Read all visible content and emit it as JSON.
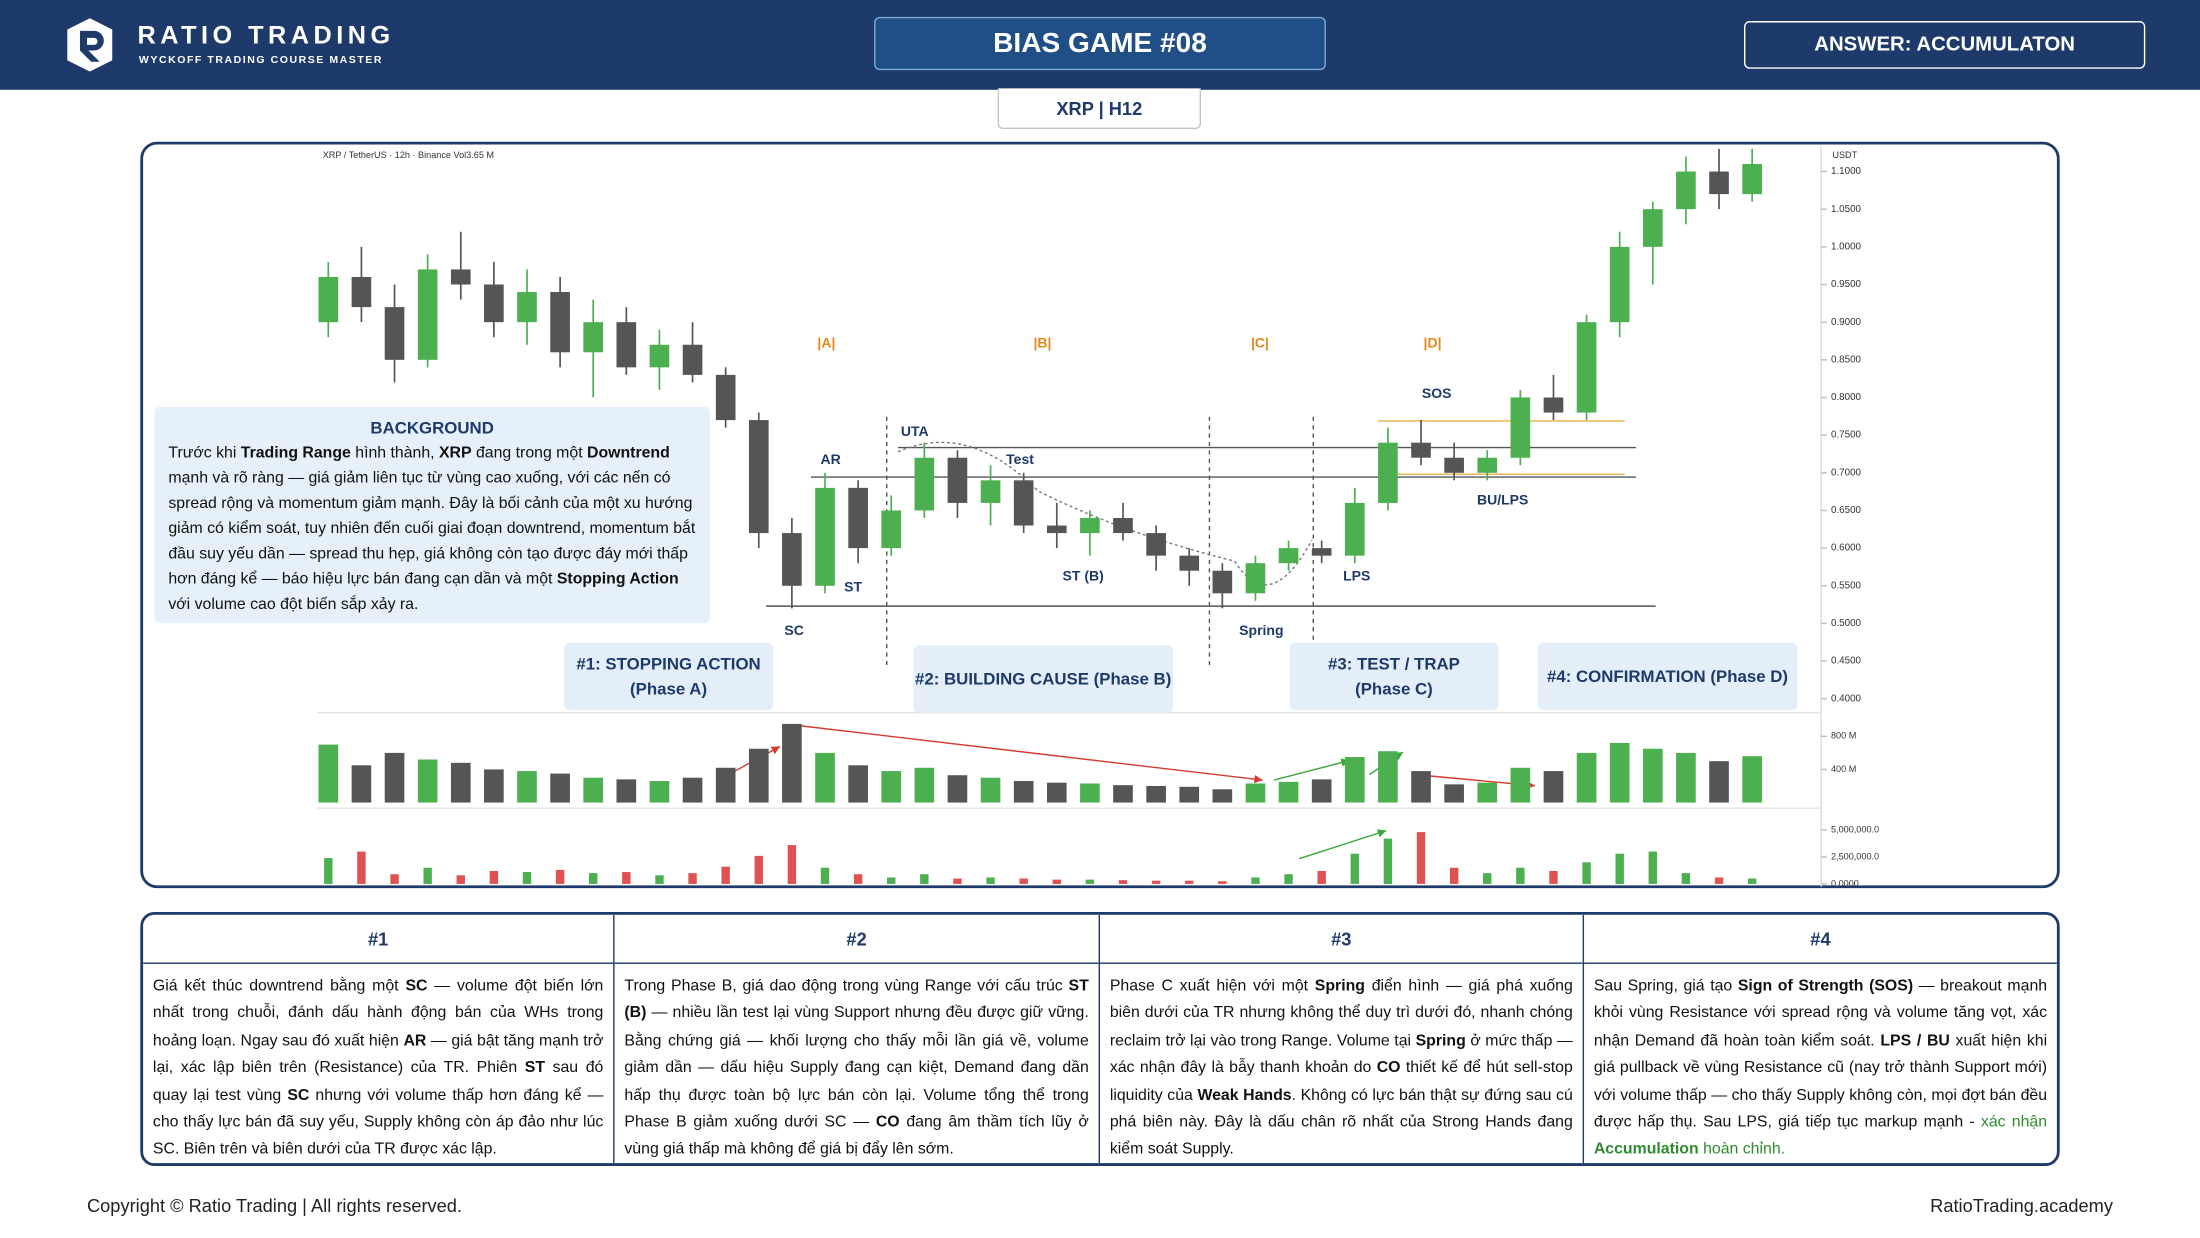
{
  "header": {
    "brand": "RATIO TRADING",
    "tagline": "WYCKOFF TRADING COURSE MASTER",
    "title": "BIAS GAME #08",
    "answer": "ANSWER: ACCUMULATON"
  },
  "tab": "XRP | H12",
  "chart": {
    "type": "candlestick",
    "info": "XRP / TetherUS · 12h · Binance  Vol3.65 M",
    "currency": "USDT",
    "up_color": "#4caf50",
    "down_color": "#555555",
    "indicator_down_color": "#e05252",
    "ylim": [
      0.387,
      1.134
    ],
    "yticks": [
      {
        "value": 1.1,
        "label": "1.1000"
      },
      {
        "value": 1.05,
        "label": "1.0500"
      },
      {
        "value": 1.0,
        "label": "1.0000"
      },
      {
        "value": 0.95,
        "label": "0.9500"
      },
      {
        "value": 0.9,
        "label": "0.9000"
      },
      {
        "value": 0.85,
        "label": "0.8500"
      },
      {
        "value": 0.8,
        "label": "0.8000"
      },
      {
        "value": 0.75,
        "label": "0.7500"
      },
      {
        "value": 0.7,
        "label": "0.7000"
      },
      {
        "value": 0.65,
        "label": "0.6500"
      },
      {
        "value": 0.6,
        "label": "0.6000"
      },
      {
        "value": 0.55,
        "label": "0.5500"
      },
      {
        "value": 0.5,
        "label": "0.5000"
      },
      {
        "value": 0.45,
        "label": "0.4500"
      },
      {
        "value": 0.4,
        "label": "0.4000"
      }
    ],
    "candles": [
      [
        0.9,
        0.98,
        0.88,
        0.96
      ],
      [
        0.96,
        1.0,
        0.9,
        0.92
      ],
      [
        0.92,
        0.95,
        0.82,
        0.85
      ],
      [
        0.85,
        0.99,
        0.84,
        0.97
      ],
      [
        0.97,
        1.02,
        0.93,
        0.95
      ],
      [
        0.95,
        0.98,
        0.88,
        0.9
      ],
      [
        0.9,
        0.97,
        0.87,
        0.94
      ],
      [
        0.94,
        0.96,
        0.84,
        0.86
      ],
      [
        0.86,
        0.93,
        0.8,
        0.9
      ],
      [
        0.9,
        0.92,
        0.83,
        0.84
      ],
      [
        0.84,
        0.89,
        0.81,
        0.87
      ],
      [
        0.87,
        0.9,
        0.82,
        0.83
      ],
      [
        0.83,
        0.84,
        0.76,
        0.77
      ],
      [
        0.77,
        0.78,
        0.6,
        0.62
      ],
      [
        0.62,
        0.64,
        0.52,
        0.55
      ],
      [
        0.55,
        0.7,
        0.54,
        0.68
      ],
      [
        0.68,
        0.69,
        0.58,
        0.6
      ],
      [
        0.6,
        0.67,
        0.59,
        0.65
      ],
      [
        0.65,
        0.74,
        0.64,
        0.72
      ],
      [
        0.72,
        0.73,
        0.64,
        0.66
      ],
      [
        0.66,
        0.71,
        0.63,
        0.69
      ],
      [
        0.69,
        0.7,
        0.62,
        0.63
      ],
      [
        0.63,
        0.66,
        0.6,
        0.62
      ],
      [
        0.62,
        0.65,
        0.59,
        0.64
      ],
      [
        0.64,
        0.66,
        0.61,
        0.62
      ],
      [
        0.62,
        0.63,
        0.57,
        0.59
      ],
      [
        0.59,
        0.6,
        0.55,
        0.57
      ],
      [
        0.57,
        0.58,
        0.52,
        0.54
      ],
      [
        0.54,
        0.59,
        0.53,
        0.58
      ],
      [
        0.58,
        0.61,
        0.57,
        0.6
      ],
      [
        0.6,
        0.61,
        0.58,
        0.59
      ],
      [
        0.59,
        0.68,
        0.58,
        0.66
      ],
      [
        0.66,
        0.76,
        0.65,
        0.74
      ],
      [
        0.74,
        0.77,
        0.71,
        0.72
      ],
      [
        0.72,
        0.74,
        0.69,
        0.7
      ],
      [
        0.7,
        0.73,
        0.69,
        0.72
      ],
      [
        0.72,
        0.81,
        0.71,
        0.8
      ],
      [
        0.8,
        0.83,
        0.77,
        0.78
      ],
      [
        0.78,
        0.91,
        0.77,
        0.9
      ],
      [
        0.9,
        1.02,
        0.88,
        1.0
      ],
      [
        1.0,
        1.06,
        0.95,
        1.05
      ],
      [
        1.05,
        1.12,
        1.03,
        1.1
      ],
      [
        1.1,
        1.13,
        1.05,
        1.07
      ],
      [
        1.07,
        1.13,
        1.06,
        1.11
      ]
    ],
    "phases": [
      "|A|",
      "|B|",
      "|C|",
      "|D|"
    ],
    "annotations": [
      "SC",
      "AR",
      "ST",
      "UTA",
      "Test",
      "ST (B)",
      "Spring",
      "LPS",
      "SOS",
      "BU/LPS"
    ],
    "volume": {
      "ylim": [
        0,
        1000
      ],
      "yticks": [
        {
          "value": 800,
          "label": "800 M"
        },
        {
          "value": 400,
          "label": "400 M"
        }
      ],
      "values": [
        700,
        450,
        600,
        520,
        480,
        400,
        380,
        350,
        300,
        280,
        260,
        300,
        420,
        650,
        950,
        600,
        450,
        380,
        420,
        330,
        300,
        260,
        240,
        230,
        210,
        200,
        190,
        160,
        230,
        250,
        280,
        550,
        620,
        380,
        220,
        240,
        420,
        380,
        600,
        720,
        650,
        600,
        500,
        560
      ]
    },
    "indicator": {
      "ylim": [
        0,
        6500000
      ],
      "yticks": [
        {
          "value": 5000000,
          "label": "5,000,000.0"
        },
        {
          "value": 2500000,
          "label": "2,500,000.0"
        },
        {
          "value": 0,
          "label": "0.0000"
        }
      ],
      "values": [
        2400000,
        3000000,
        900000,
        1500000,
        800000,
        1200000,
        1100000,
        1300000,
        1000000,
        1100000,
        800000,
        1000000,
        1600000,
        2600000,
        3600000,
        1500000,
        900000,
        600000,
        900000,
        500000,
        600000,
        500000,
        400000,
        400000,
        350000,
        300000,
        300000,
        250000,
        600000,
        900000,
        1200000,
        2800000,
        4200000,
        4800000,
        1500000,
        1000000,
        1500000,
        1200000,
        2000000,
        2800000,
        3000000,
        1000000,
        600000,
        500000
      ]
    }
  },
  "background": {
    "title": "BACKGROUND",
    "text": [
      "Trước khi ",
      {
        "t": "Trading Range",
        "b": true
      },
      " hình thành, ",
      {
        "t": "XRP",
        "b": true
      },
      " đang trong một ",
      {
        "t": "Downtrend",
        "b": true
      },
      " mạnh và rõ ràng — giá giảm liên tục từ vùng cao xuống, với các nến có spread rộng và momentum giảm mạnh. Đây là bối cảnh của một xu hướng giảm có kiểm soát, tuy nhiên đến cuối giai đoạn downtrend, momentum bắt đầu suy yếu dần — spread thu hẹp, giá không còn tạo được đáy mới thấp hơn đáng kể — báo hiệu lực bán đang cạn dần và một ",
      {
        "t": "Stopping Action",
        "b": true
      },
      " với volume cao đột biến sắp xảy ra."
    ]
  },
  "phase_boxes": [
    {
      "title": "#1: STOPPING ACTION",
      "subtitle": "(Phase A)"
    },
    {
      "title": "#2: BUILDING CAUSE (Phase B)"
    },
    {
      "title": "#3: TEST / TRAP",
      "subtitle": "(Phase C)"
    },
    {
      "title": "#4: CONFIRMATION (Phase D)"
    }
  ],
  "notes": [
    {
      "title": "#1",
      "text": [
        "Giá kết thúc downtrend bằng một ",
        {
          "t": "SC",
          "b": true
        },
        " — volume đột biến lớn nhất trong chuỗi, đánh dấu hành động bán của WHs trong hoảng loạn. Ngay sau đó xuất hiện ",
        {
          "t": "AR",
          "b": true
        },
        " — giá bật tăng mạnh trở lại, xác lập biên trên (Resistance) của TR. Phiên ",
        {
          "t": "ST",
          "b": true
        },
        " sau đó quay lại test vùng ",
        {
          "t": "SC",
          "b": true
        },
        " nhưng với volume thấp hơn đáng kể — cho thấy lực bán đã suy yếu, Supply không còn áp đảo như lúc SC. Biên trên và biên dưới của TR được xác lập."
      ]
    },
    {
      "title": "#2",
      "text": [
        "Trong Phase B, giá dao động trong vùng Range với cấu trúc ",
        {
          "t": "ST (B)",
          "b": true
        },
        " — nhiều lần test lại vùng Support nhưng đều được giữ vững. Bằng chứng giá — khối lượng cho thấy mỗi lần giá về, volume giảm dần — dấu hiệu Supply đang cạn kiệt, Demand đang dần hấp thụ được toàn bộ lực bán còn lại. Volume tổng thể trong Phase B giảm xuống dưới SC — ",
        {
          "t": "CO",
          "b": true
        },
        " đang âm thầm tích lũy ở vùng giá thấp mà không để giá bị đẩy lên sớm."
      ]
    },
    {
      "title": "#3",
      "text": [
        "Phase C xuất hiện với một ",
        {
          "t": "Spring",
          "b": true
        },
        " điển hình — giá phá xuống biên dưới của TR nhưng không thể duy trì dưới đó, nhanh chóng reclaim trở lại vào trong Range. Volume tại ",
        {
          "t": "Spring",
          "b": true
        },
        " ở mức thấp — xác nhận đây là bẫy thanh khoản do ",
        {
          "t": "CO",
          "b": true
        },
        " thiết kế để hút sell-stop liquidity của ",
        {
          "t": "Weak Hands",
          "b": true
        },
        ". Không có lực bán thật sự đứng sau cú phá biên này. Đây là dấu chân rõ nhất của Strong Hands đang kiểm soát Supply."
      ]
    },
    {
      "title": "#4",
      "text": [
        "Sau Spring, giá tạo ",
        {
          "t": "Sign of Strength (SOS)",
          "b": true
        },
        " — breakout mạnh khỏi vùng Resistance với spread rộng và volume tăng vọt, xác nhận Demand đã hoàn toàn kiểm soát. ",
        {
          "t": "LPS / BU",
          "b": true
        },
        " xuất hiện khi giá pullback về vùng Resistance cũ (nay trở thành Support mới) với volume thấp — cho thấy Supply không còn, mọi đợt bán đều được hấp thụ. Sau LPS, giá tiếp tục markup mạnh - ",
        {
          "t": "xác nhận ",
          "color": "#2e8b2e"
        },
        {
          "t": "Accumulation",
          "b": true,
          "color": "#2e8b2e"
        },
        {
          "t": " hoàn chỉnh.",
          "color": "#2e8b2e"
        }
      ]
    }
  ],
  "footer": {
    "copyright": "Copyright © Ratio Trading | All rights reserved.",
    "site": "RatioTrading.academy"
  }
}
